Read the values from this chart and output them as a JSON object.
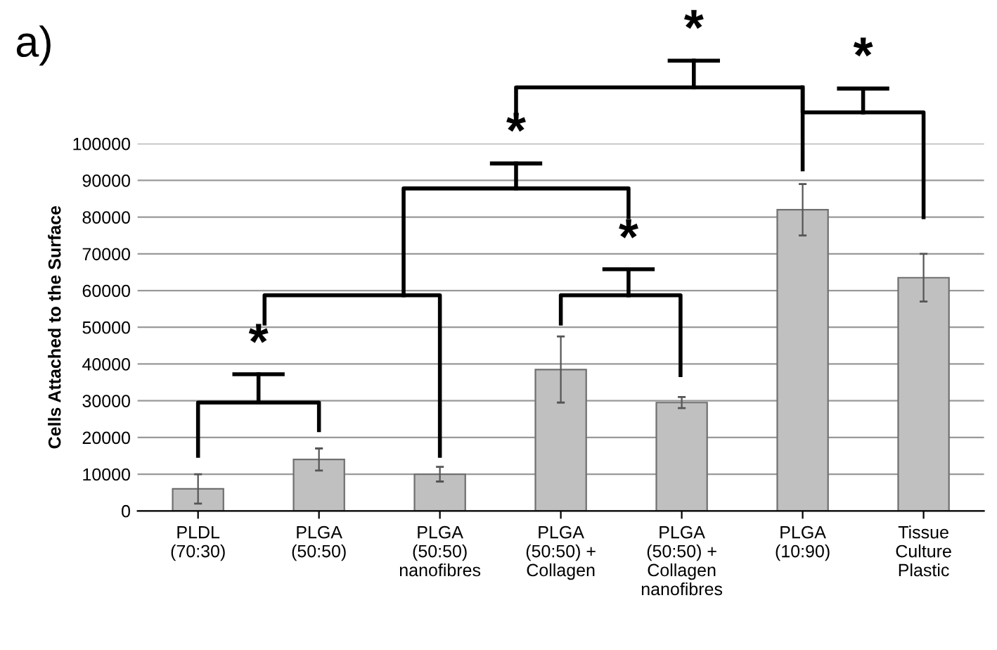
{
  "chart_data": {
    "type": "bar",
    "ylabel": "Cells Attached to the Surface",
    "categories": [
      "PLDL\n(70:30)",
      "PLGA\n(50:50)",
      "PLGA\n(50:50)\nnanofibres",
      "PLGA\n(50:50) +\nCollagen",
      "PLGA\n(50:50) +\nCollagen\nnanofibres",
      "PLGA\n(10:90)",
      "Tissue\nCulture\nPlastic"
    ],
    "values": [
      6000,
      14000,
      10000,
      38500,
      29500,
      82000,
      63500
    ],
    "errors": [
      4000,
      3000,
      2000,
      9000,
      1500,
      7000,
      6500
    ],
    "color": "#c0c0c0",
    "ylim": [
      0,
      100000
    ],
    "yticks": [
      0,
      10000,
      20000,
      30000,
      40000,
      50000,
      60000,
      70000,
      80000,
      90000,
      100000
    ],
    "grid": "y",
    "annotations": [
      "a)",
      "*",
      "*",
      "*",
      "*",
      "*"
    ]
  }
}
